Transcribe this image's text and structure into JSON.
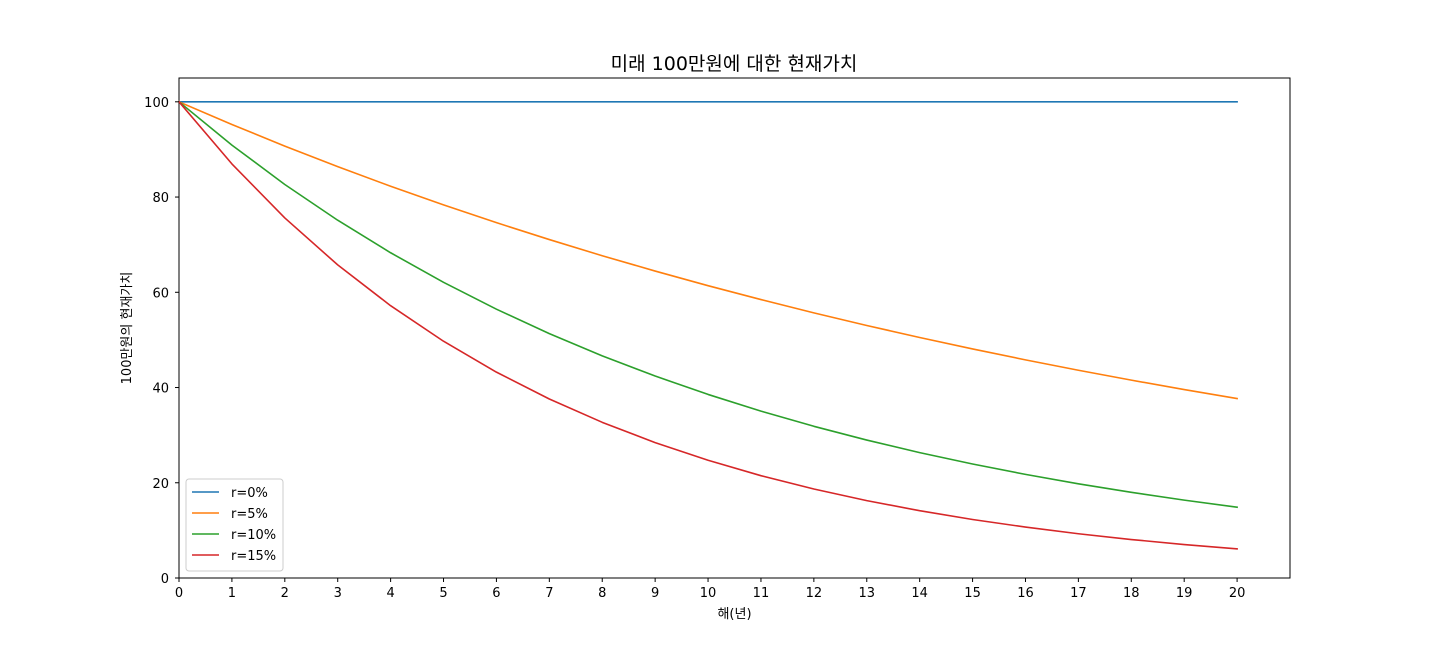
{
  "chart_data": {
    "type": "line",
    "title": "미래 100만원에 대한 현재가치",
    "xlabel": "해(년)",
    "ylabel": "100만원의 현재가치",
    "xlim": [
      0,
      21
    ],
    "ylim": [
      0,
      105
    ],
    "x": [
      0,
      1,
      2,
      3,
      4,
      5,
      6,
      7,
      8,
      9,
      10,
      11,
      12,
      13,
      14,
      15,
      16,
      17,
      18,
      19,
      20
    ],
    "x_ticks": [
      0,
      1,
      2,
      3,
      4,
      5,
      6,
      7,
      8,
      9,
      10,
      11,
      12,
      13,
      14,
      15,
      16,
      17,
      18,
      19,
      20
    ],
    "y_ticks": [
      0,
      20,
      40,
      60,
      80,
      100
    ],
    "grid": false,
    "legend_position": "lower-left",
    "series": [
      {
        "name": "r=0%",
        "color": "#1f77b4",
        "values": [
          100,
          100,
          100,
          100,
          100,
          100,
          100,
          100,
          100,
          100,
          100,
          100,
          100,
          100,
          100,
          100,
          100,
          100,
          100,
          100,
          100
        ]
      },
      {
        "name": "r=5%",
        "color": "#ff7f0e",
        "values": [
          100,
          95.24,
          90.7,
          86.38,
          82.27,
          78.35,
          74.62,
          71.07,
          67.68,
          64.46,
          61.39,
          58.47,
          55.68,
          53.03,
          50.51,
          48.1,
          45.81,
          43.63,
          41.55,
          39.57,
          37.69
        ]
      },
      {
        "name": "r=10%",
        "color": "#2ca02c",
        "values": [
          100,
          90.91,
          82.64,
          75.13,
          68.3,
          62.09,
          56.45,
          51.32,
          46.65,
          42.41,
          38.55,
          35.05,
          31.86,
          28.97,
          26.33,
          23.94,
          21.76,
          19.78,
          17.99,
          16.35,
          14.86
        ]
      },
      {
        "name": "r=15%",
        "color": "#d62728",
        "values": [
          100,
          86.96,
          75.61,
          65.75,
          57.18,
          49.72,
          43.23,
          37.59,
          32.69,
          28.43,
          24.72,
          21.49,
          18.69,
          16.25,
          14.13,
          12.29,
          10.69,
          9.29,
          8.08,
          7.03,
          6.11
        ]
      }
    ]
  }
}
